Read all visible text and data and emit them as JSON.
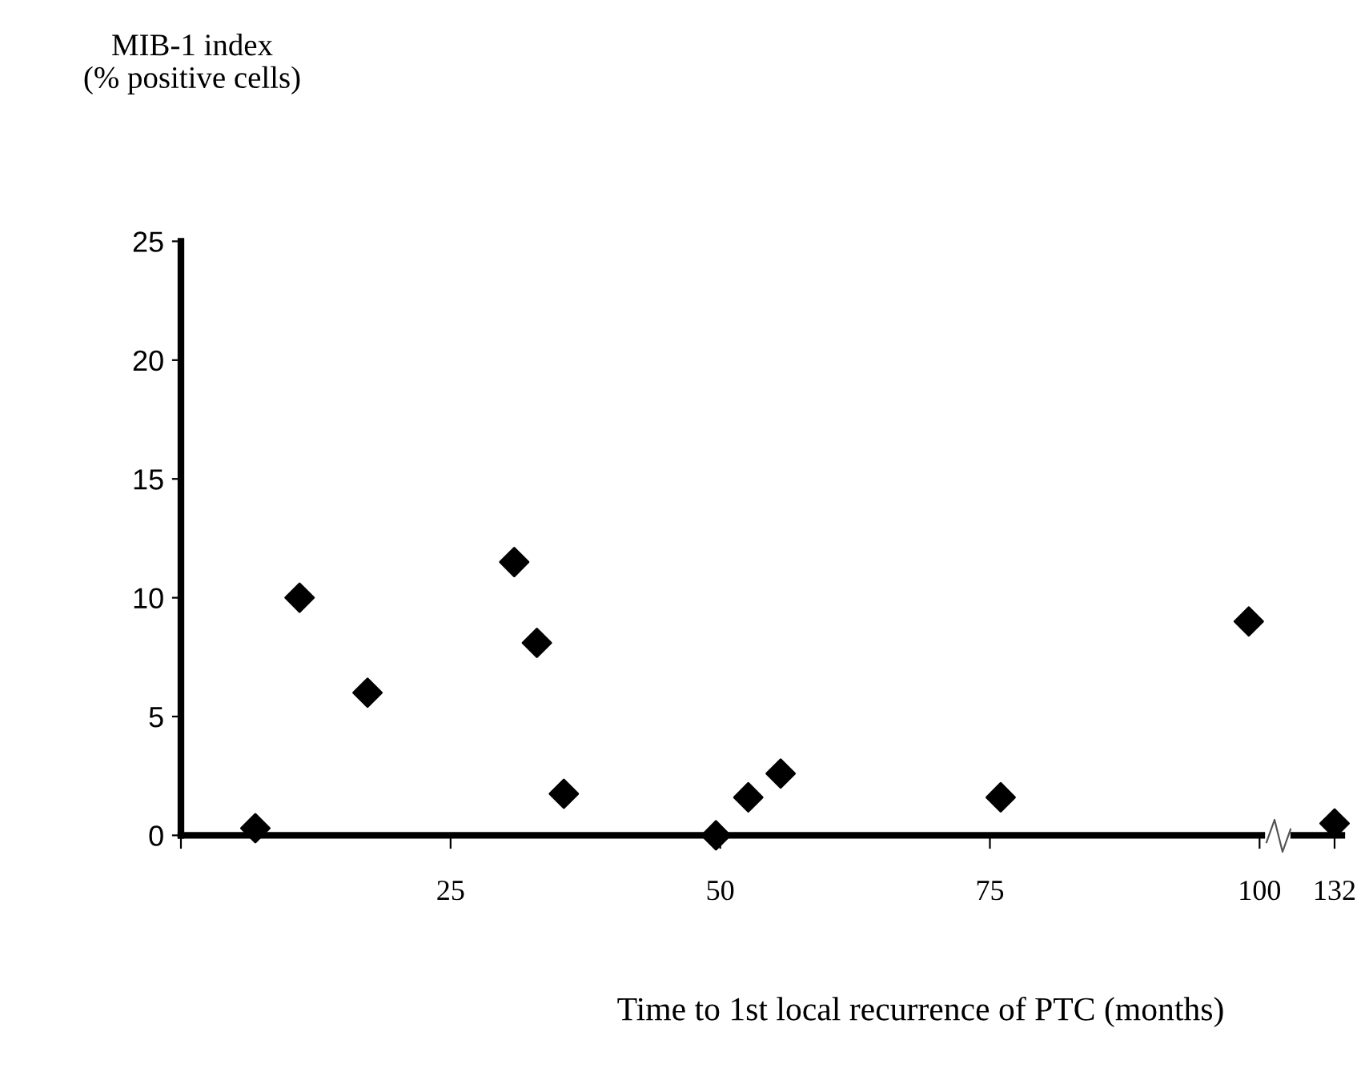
{
  "chart_data": [
    {
      "type": "scatter",
      "ylabel": "MIB-1 index\n(% positive cells)",
      "xlabel": "Time to 1st local recurrence of PTC (months)",
      "marker": "diamond",
      "grid": false,
      "legend": false,
      "xlim": [
        0,
        100.2
      ],
      "xticks": [
        {
          "value": 0,
          "label": null
        },
        25,
        50,
        75,
        100
      ],
      "ylim": [
        0,
        25
      ],
      "yticks": [
        0,
        5,
        10,
        15,
        20,
        25
      ],
      "series": [
        {
          "color": "#000000",
          "x": [
            6.9,
            11,
            17.3,
            30.9,
            33,
            35.5,
            49.6,
            52.6,
            55.6,
            76,
            99
          ],
          "values": [
            0.3,
            10,
            6,
            11.5,
            8.1,
            1.75,
            0,
            1.6,
            2.6,
            1.6,
            9
          ]
        }
      ]
    },
    {
      "type": "scatter",
      "marker": "diamond",
      "grid": false,
      "legend": false,
      "tick_labels": "x",
      "categories": [
        "132"
      ],
      "ylim": [
        0,
        25
      ],
      "series": [
        {
          "color": "#000000",
          "values": [
            0.5
          ]
        }
      ]
    }
  ]
}
